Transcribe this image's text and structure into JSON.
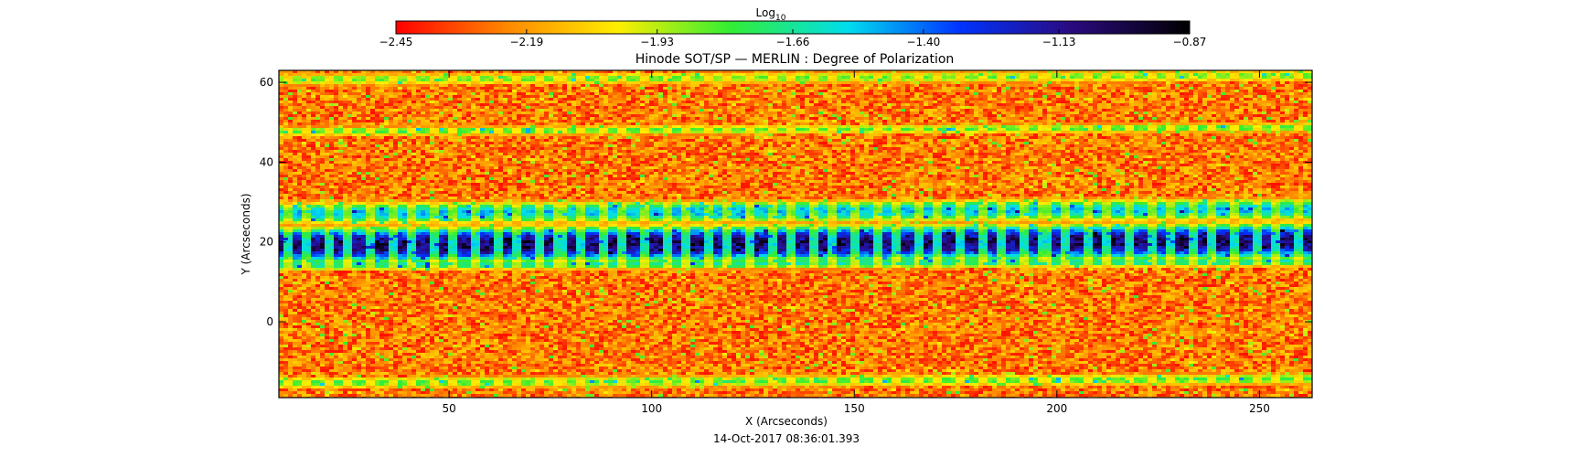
{
  "chart_data": {
    "type": "heatmap",
    "title": "Hinode SOT/SP — MERLIN : Degree of Polarization",
    "xlabel": "X (Arcseconds)",
    "ylabel": "Y (Arcseconds)",
    "xlim": [
      8,
      263
    ],
    "ylim": [
      -19,
      63
    ],
    "x_ticks": [
      50,
      100,
      150,
      200,
      250
    ],
    "y_ticks": [
      0,
      20,
      40,
      60
    ],
    "timestamp": "14-Oct-2017 08:36:01.393",
    "colorbar": {
      "label": "Log",
      "label_sub": "10",
      "ticks": [
        -2.45,
        -2.19,
        -1.93,
        -1.66,
        -1.4,
        -1.13,
        -0.87
      ],
      "tick_labels": [
        "-2.45",
        "-2.19",
        "-1.93",
        "-1.66",
        "-1.40",
        "-1.13",
        "-0.87"
      ],
      "range": [
        -2.45,
        -0.87
      ],
      "colors": [
        "#ff0000",
        "#ff8800",
        "#ffee00",
        "#33ee33",
        "#00ddee",
        "#0033ff",
        "#2a0a80",
        "#000000"
      ]
    },
    "bands": [
      {
        "y_center": 19.5,
        "half_width": 3.5,
        "level": -0.95
      },
      {
        "y_center": 27.5,
        "half_width": 2.0,
        "level": -1.45
      },
      {
        "y_center": 14.5,
        "half_width": 1.0,
        "level": -1.6
      },
      {
        "y_center": 48.0,
        "half_width": 0.8,
        "level": -1.75
      },
      {
        "y_center": 61.0,
        "half_width": 1.0,
        "level": -1.8
      },
      {
        "y_center": -15.0,
        "half_width": 1.0,
        "level": -1.75
      }
    ],
    "background_level": -2.25
  }
}
